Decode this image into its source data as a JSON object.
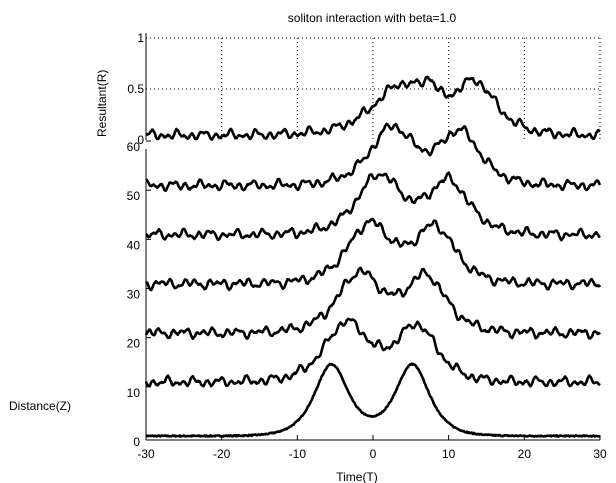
{
  "chart_data": {
    "type": "line",
    "title": "soliton interaction with beta=1.0",
    "xlabel": "Time(T)",
    "ylabel_top": "Resultant(R)",
    "ylabel_side": "Distance(Z)",
    "xlim": [
      -30,
      30
    ],
    "x_ticks": [
      "-30",
      "-20",
      "-10",
      "0",
      "10",
      "20",
      "30"
    ],
    "x_tick_values": [
      -30,
      -20,
      -10,
      0,
      10,
      20,
      30
    ],
    "z_ticks": [
      "0",
      "10",
      "20",
      "30",
      "40",
      "50",
      "60"
    ],
    "z_tick_values": [
      0,
      10,
      20,
      30,
      40,
      50,
      60
    ],
    "r_ticks": [
      "0",
      "0.5",
      "1"
    ],
    "r_tick_values": [
      0,
      0.5,
      1
    ],
    "rlim": [
      0,
      1
    ],
    "grid_top": true,
    "series_color": "#000000",
    "profiles": [
      {
        "z": 0,
        "baseline": 0.0,
        "peaks": [
          {
            "t": -5.5,
            "a": 0.75,
            "w": 2.0
          },
          {
            "t": 5.2,
            "a": 0.75,
            "w": 2.0
          }
        ]
      },
      {
        "z": 10,
        "baseline": 0.05,
        "peaks": [
          {
            "t": -3.5,
            "a": 0.62,
            "w": 2.6
          },
          {
            "t": 5.8,
            "a": 0.58,
            "w": 2.4
          }
        ]
      },
      {
        "z": 20,
        "baseline": 0.05,
        "peaks": [
          {
            "t": -1.8,
            "a": 0.62,
            "w": 2.6
          },
          {
            "t": 7.0,
            "a": 0.58,
            "w": 2.4
          }
        ]
      },
      {
        "z": 30,
        "baseline": 0.05,
        "peaks": [
          {
            "t": -0.5,
            "a": 0.62,
            "w": 2.6
          },
          {
            "t": 8.2,
            "a": 0.58,
            "w": 2.4
          }
        ]
      },
      {
        "z": 40,
        "baseline": 0.05,
        "peaks": [
          {
            "t": 0.8,
            "a": 0.62,
            "w": 2.6
          },
          {
            "t": 10.0,
            "a": 0.55,
            "w": 2.4
          }
        ]
      },
      {
        "z": 50,
        "baseline": 0.05,
        "peaks": [
          {
            "t": 2.5,
            "a": 0.6,
            "w": 2.6
          },
          {
            "t": 11.5,
            "a": 0.55,
            "w": 2.4
          }
        ]
      },
      {
        "z": 60,
        "baseline": 0.05,
        "peaks": [
          {
            "t": 3.8,
            "a": 0.52,
            "w": 3.4
          },
          {
            "t": 7.5,
            "a": 0.2,
            "w": 0.8
          },
          {
            "t": 13.5,
            "a": 0.52,
            "w": 2.5
          }
        ]
      }
    ]
  }
}
